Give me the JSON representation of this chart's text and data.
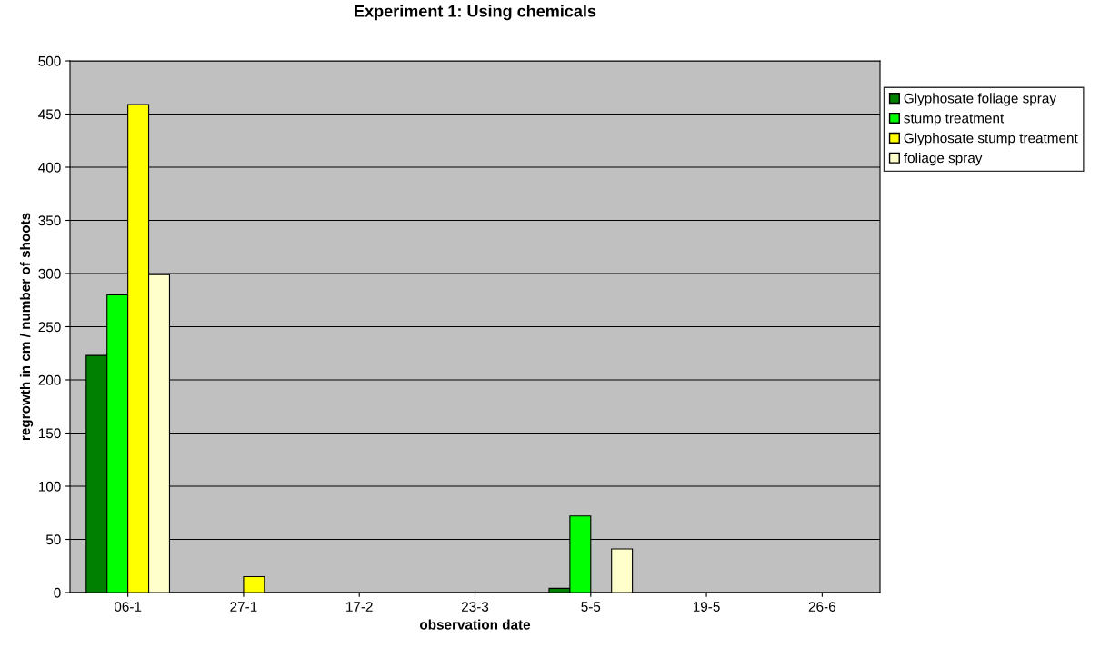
{
  "chart_data": {
    "type": "bar",
    "title": "Experiment 1: Using chemicals",
    "xlabel": "observation date",
    "ylabel": "regrowth in cm / number of shoots",
    "categories": [
      "06-1",
      "27-1",
      "17-2",
      "23-3",
      "5-5",
      "19-5",
      "26-6"
    ],
    "series": [
      {
        "name": "Glyphosate foliage spray",
        "color": "#008000",
        "values": [
          223,
          null,
          null,
          null,
          4,
          null,
          null
        ]
      },
      {
        "name": "stump treatment",
        "color": "#00ff00",
        "values": [
          280,
          null,
          null,
          null,
          72,
          null,
          null
        ]
      },
      {
        "name": "Glyphosate stump treatment",
        "color": "#ffff00",
        "values": [
          459,
          15,
          null,
          null,
          null,
          null,
          null
        ]
      },
      {
        "name": "foliage spray",
        "color": "#ffffcc",
        "values": [
          299,
          null,
          null,
          null,
          41,
          null,
          null
        ]
      }
    ],
    "ylim": [
      0,
      500
    ],
    "yticks": [
      0,
      50,
      100,
      150,
      200,
      250,
      300,
      350,
      400,
      450,
      500
    ],
    "grid": "y",
    "legend": "top right"
  }
}
